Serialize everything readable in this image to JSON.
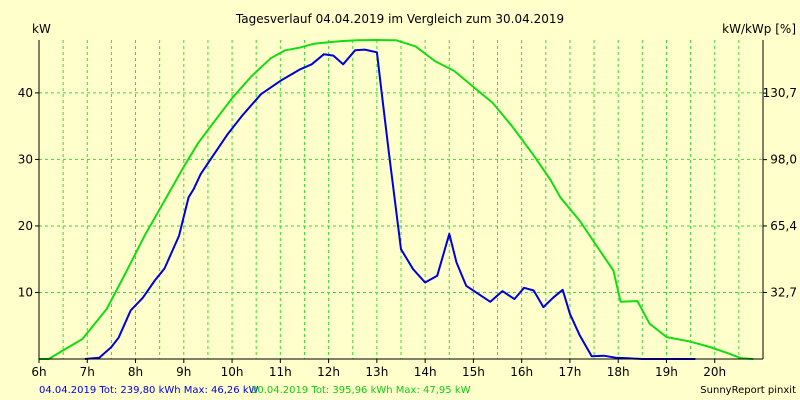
{
  "chart_data": {
    "type": "line",
    "title": "Tagesverlauf 04.04.2019 im Vergleich zum 30.04.2019",
    "ylabel_left": "kW",
    "ylabel_right": "kW/kWp [%]",
    "xlim": [
      6,
      21
    ],
    "ylim": [
      0,
      47.95
    ],
    "y2lim": [
      0,
      156.8
    ],
    "x_ticks": [
      6,
      7,
      8,
      9,
      10,
      11,
      12,
      13,
      14,
      15,
      16,
      17,
      18,
      19,
      20
    ],
    "x_tick_labels": [
      "6h",
      "7h",
      "8h",
      "9h",
      "10h",
      "11h",
      "12h",
      "13h",
      "14h",
      "15h",
      "16h",
      "17h",
      "18h",
      "19h",
      "20h"
    ],
    "y_ticks": [
      10,
      20,
      30,
      40
    ],
    "y_tick_labels": [
      "10",
      "20",
      "30",
      "40"
    ],
    "y2_ticks": [
      32.7,
      65.4,
      98.0,
      130.7
    ],
    "y2_tick_labels": [
      "32,7",
      "65,4",
      "98,0",
      "130,7"
    ],
    "grid": true,
    "series": [
      {
        "name": "04.04.2019",
        "color": "#0000dd",
        "x": [
          6.95,
          7.25,
          7.5,
          7.65,
          7.9,
          8.15,
          8.4,
          8.6,
          8.9,
          9.1,
          9.2,
          9.35,
          9.6,
          9.9,
          10.2,
          10.6,
          11.0,
          11.4,
          11.65,
          11.9,
          12.1,
          12.3,
          12.55,
          12.75,
          13.0,
          13.1,
          13.25,
          13.5,
          13.75,
          14.0,
          14.25,
          14.5,
          14.65,
          14.85,
          15.1,
          15.35,
          15.6,
          15.85,
          16.05,
          16.25,
          16.45,
          16.65,
          16.85,
          17.0,
          17.2,
          17.45,
          17.7,
          17.95,
          18.2,
          18.5,
          18.8,
          19.0,
          19.3,
          19.6
        ],
        "values": [
          0,
          0.2,
          1.8,
          3.2,
          7.3,
          9.2,
          11.8,
          13.6,
          18.5,
          24.3,
          25.5,
          27.8,
          30.5,
          33.7,
          36.5,
          39.8,
          41.8,
          43.5,
          44.3,
          45.8,
          45.6,
          44.3,
          46.4,
          46.5,
          46.1,
          40.0,
          31.0,
          16.5,
          13.5,
          11.5,
          12.5,
          18.8,
          14.5,
          11.0,
          9.8,
          8.6,
          10.2,
          9.0,
          10.7,
          10.3,
          7.8,
          9.2,
          10.4,
          6.8,
          3.6,
          0.4,
          0.5,
          0.2,
          0.1,
          0,
          0,
          0,
          0,
          0
        ]
      },
      {
        "name": "30.04.2019",
        "color": "#11dd11",
        "x": [
          6.0,
          6.2,
          6.5,
          6.9,
          7.4,
          7.8,
          8.2,
          8.6,
          9.0,
          9.3,
          9.6,
          10.0,
          10.4,
          10.8,
          11.1,
          11.4,
          11.7,
          12.0,
          12.3,
          12.6,
          13.0,
          13.4,
          13.8,
          14.2,
          14.6,
          15.0,
          15.4,
          15.8,
          16.2,
          16.6,
          16.8,
          17.2,
          17.6,
          17.9,
          18.05,
          18.4,
          18.65,
          19.0,
          19.5,
          19.9,
          20.3,
          20.55,
          20.8
        ],
        "values": [
          0,
          0,
          1.3,
          3.0,
          7.5,
          13.0,
          18.7,
          23.8,
          28.9,
          32.5,
          35.4,
          39.2,
          42.5,
          45.2,
          46.4,
          46.8,
          47.4,
          47.6,
          47.8,
          47.9,
          47.95,
          47.9,
          47.0,
          44.8,
          43.3,
          40.9,
          38.5,
          35.0,
          31.1,
          26.9,
          24.3,
          20.8,
          16.5,
          13.3,
          8.6,
          8.7,
          5.3,
          3.3,
          2.6,
          1.8,
          0.8,
          0.1,
          0
        ]
      }
    ]
  },
  "footer": {
    "summary_a": "04.04.2019 Tot: 239,80 kWh Max: 46,26 kW",
    "summary_b": "30.04.2019 Tot: 395,96 kWh Max: 47,95 kW",
    "credit": "SunnyReport pinxit"
  },
  "colors": {
    "background": "#ffffcc",
    "grid": "#33dd33",
    "axis": "#000000"
  }
}
